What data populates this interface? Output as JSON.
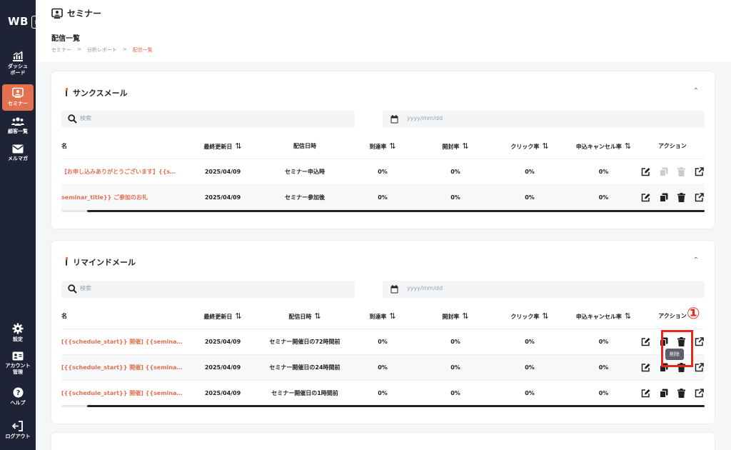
{
  "app": {
    "logo": "WB",
    "collapse_icon": "»"
  },
  "sidebar": {
    "top": [
      {
        "icon": "chart-icon",
        "label": "ダッシュ\nボード"
      },
      {
        "icon": "seminar-icon",
        "label": "セミナー",
        "active": true
      },
      {
        "icon": "users-icon",
        "label": "顧客一覧"
      },
      {
        "icon": "mail-icon",
        "label": "メルマガ"
      }
    ],
    "bottom": [
      {
        "icon": "gear-icon",
        "label": "設定"
      },
      {
        "icon": "account-icon",
        "label": "アカウント\n管理"
      },
      {
        "icon": "help-icon",
        "label": "ヘルプ"
      },
      {
        "icon": "logout-icon",
        "label": "ログアウト"
      }
    ],
    "accent": "#e3704f"
  },
  "header": {
    "title": "セミナー",
    "subtitle": "配信一覧",
    "breadcrumb": [
      "セミナー",
      ">",
      "分析レポート",
      ">",
      "配信一覧"
    ]
  },
  "columns": {
    "name": "名",
    "updated": "最終更新日",
    "send_at": "配信日時",
    "delivery": "到達率",
    "open": "開封率",
    "click": "クリック率",
    "cancel": "申込キャンセル率",
    "action": "アクション",
    "sort_icon": "⇅"
  },
  "thanks": {
    "title": "サンクスメール",
    "search_placeholder": "検索",
    "date_placeholder": "yyyy/mm/dd",
    "rows": [
      {
        "name": "【お申し込みありがとうございます】{{s…",
        "updated": "2025/04/09",
        "send_at": "セミナー申込時",
        "delivery": "0%",
        "open": "0%",
        "click": "0%",
        "cancel": "0%"
      },
      {
        "name": "seminar_title}} ご参加のお礼",
        "updated": "2025/04/09",
        "send_at": "セミナー参加後",
        "delivery": "0%",
        "open": "0%",
        "click": "0%",
        "cancel": "0%"
      }
    ]
  },
  "remind": {
    "title": "リマインドメール",
    "search_placeholder": "検索",
    "date_placeholder": "yyyy/mm/dd",
    "rows": [
      {
        "name": "[{{schedule_start}} 開催] {{seminar_…",
        "updated": "2025/04/09",
        "send_at": "セミナー開催日の72時間前",
        "delivery": "0%",
        "open": "0%",
        "click": "0%",
        "cancel": "0%"
      },
      {
        "name": "[{{schedule_start}} 開催] {{seminar_…",
        "updated": "2025/04/09",
        "send_at": "セミナー開催日の24時間前",
        "delivery": "0%",
        "open": "0%",
        "click": "0%",
        "cancel": "0%"
      },
      {
        "name": "[{{schedule_start}} 開催] {{seminar_…",
        "updated": "2025/04/09",
        "send_at": "セミナー開催日の1時間前",
        "delivery": "0%",
        "open": "0%",
        "click": "0%",
        "cancel": "0%"
      }
    ]
  },
  "annotation": {
    "callout": "①",
    "tooltip": "削除"
  }
}
